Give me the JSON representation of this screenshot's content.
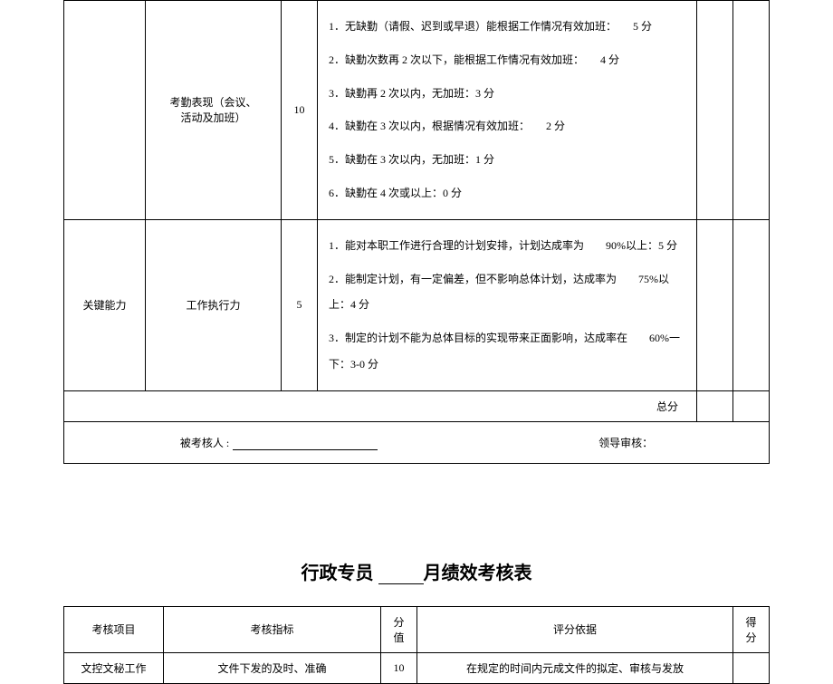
{
  "table1": {
    "row1": {
      "col2_line1": "考勤表现（会议、",
      "col2_line2": "活动及加班）",
      "score": "10",
      "criteria": [
        "1．无缺勤（请假、迟到或早退）能根据工作情况有效加班：　　5 分",
        "2．缺勤次数再 2 次以下，能根据工作情况有效加班：　　4 分",
        "3．缺勤再 2 次以内，无加班：3 分",
        "4．缺勤在 3 次以内，根据情况有效加班：　　2 分",
        "5．缺勤在 3 次以内，无加班：1 分",
        "6．缺勤在 4 次或以上：0 分"
      ]
    },
    "row2": {
      "col1": "关键能力",
      "col2": "工作执行力",
      "score": "5",
      "criteria": [
        "1．能对本职工作进行合理的计划安排，计划达成率为　　90%以上：5 分",
        "2．能制定计划，有一定偏差，但不影响总体计划，达成率为　　75%以上：4 分",
        "3．制定的计划不能为总体目标的实现带来正面影响，达成率在　　60%一下：3-0 分"
      ]
    },
    "total_label": "总分",
    "sig1": "被考核人 :",
    "sig2": "领导审核："
  },
  "title2": {
    "prefix": "行政专员 ",
    "suffix": "月绩效考核表"
  },
  "table2": {
    "headers": {
      "h1": "考核项目",
      "h2": "考核指标",
      "h3a": "分",
      "h3b": "值",
      "h4": "评分依据",
      "h5a": "得",
      "h5b": "分"
    },
    "row1": {
      "c1": "文控文秘工作",
      "c2": "文件下发的及时、准确",
      "c3": "10",
      "c4": "在规定的时间内元成文件的拟定、审核与发放"
    }
  }
}
